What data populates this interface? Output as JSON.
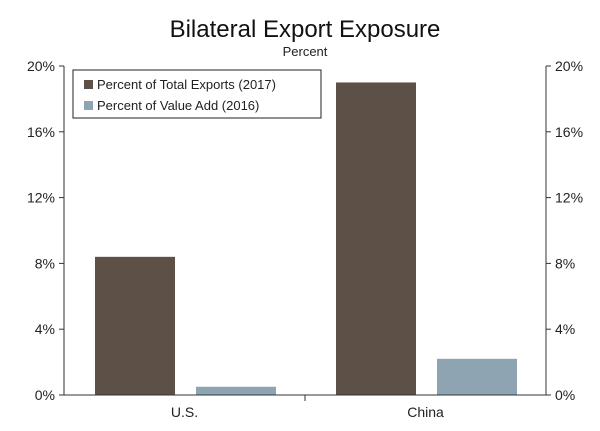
{
  "chart_data": {
    "type": "bar",
    "title": "Bilateral Export Exposure",
    "subtitle": "Percent",
    "categories": [
      "U.S.",
      "China"
    ],
    "series": [
      {
        "name": "Percent of Total Exports (2017)",
        "values": [
          8.4,
          19.0
        ],
        "color": "#5d5046"
      },
      {
        "name": "Percent of Value Add (2016)",
        "values": [
          0.5,
          2.2
        ],
        "color": "#8ea4b2"
      }
    ],
    "ylim": [
      0,
      20
    ],
    "yticks": [
      0,
      4,
      8,
      12,
      16,
      20
    ],
    "ytick_labels": [
      "0%",
      "4%",
      "8%",
      "12%",
      "16%",
      "20%"
    ],
    "y_axes": "both",
    "grid": false,
    "legend_position": "top-left",
    "legend_border": true
  }
}
